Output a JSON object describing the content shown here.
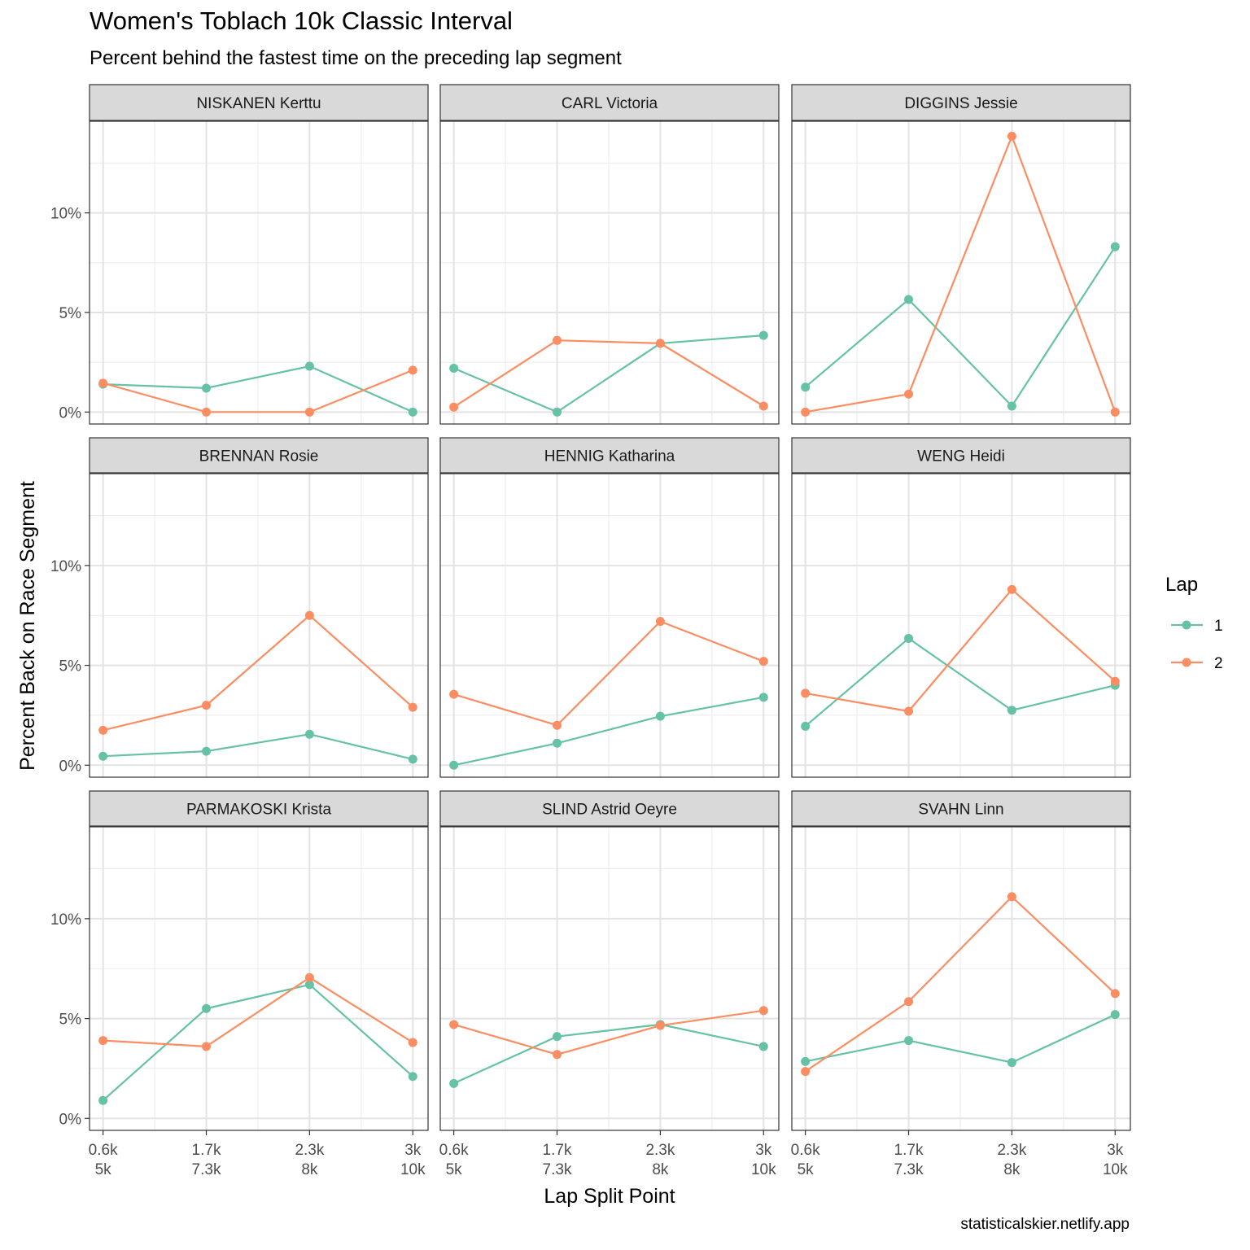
{
  "title": "Women's Toblach 10k Classic Interval",
  "subtitle": "Percent behind the fastest time on the preceding lap segment",
  "caption": "statisticalskier.netlify.app",
  "chart_data": {
    "type": "line",
    "facet_layout": "3x3 grid, shared axes",
    "xlabel": "Lap Split Point",
    "ylabel": "Percent Back on Race Segment",
    "x_ticks": [
      "0.6k\n5k",
      "1.7k\n7.3k",
      "2.3k\n8k",
      "3k\n10k"
    ],
    "y_ticks": [
      "0%",
      "5%",
      "10%"
    ],
    "y_tick_values": [
      0,
      5,
      10
    ],
    "ylim": [
      -0.6,
      14.6
    ],
    "grid": true,
    "legend": {
      "title": "Lap",
      "placement": "right",
      "entries": [
        {
          "label": "1",
          "color": "#66c2a5"
        },
        {
          "label": "2",
          "color": "#fc8d62"
        }
      ]
    },
    "colors": {
      "lap1": "#66c2a5",
      "lap2": "#fc8d62",
      "strip": "#d9d9d9",
      "grid": "#ebebeb"
    },
    "panels": [
      {
        "name": "NISKANEN Kerttu",
        "series": [
          {
            "name": "1",
            "values": [
              1.4,
              1.2,
              2.3,
              0.0
            ]
          },
          {
            "name": "2",
            "values": [
              1.45,
              0.0,
              0.0,
              2.1
            ]
          }
        ]
      },
      {
        "name": "CARL Victoria",
        "series": [
          {
            "name": "1",
            "values": [
              2.2,
              0.0,
              3.45,
              3.85
            ]
          },
          {
            "name": "2",
            "values": [
              0.25,
              3.6,
              3.45,
              0.3
            ]
          }
        ]
      },
      {
        "name": "DIGGINS Jessie",
        "series": [
          {
            "name": "1",
            "values": [
              1.25,
              5.65,
              0.3,
              8.3
            ]
          },
          {
            "name": "2",
            "values": [
              0.0,
              0.9,
              13.85,
              0.0
            ]
          }
        ]
      },
      {
        "name": "BRENNAN Rosie",
        "series": [
          {
            "name": "1",
            "values": [
              0.45,
              0.7,
              1.55,
              0.3
            ]
          },
          {
            "name": "2",
            "values": [
              1.75,
              3.0,
              7.5,
              2.9
            ]
          }
        ]
      },
      {
        "name": "HENNIG Katharina",
        "series": [
          {
            "name": "1",
            "values": [
              0.0,
              1.1,
              2.45,
              3.4
            ]
          },
          {
            "name": "2",
            "values": [
              3.55,
              2.0,
              7.2,
              5.2
            ]
          }
        ]
      },
      {
        "name": "WENG Heidi",
        "series": [
          {
            "name": "1",
            "values": [
              1.95,
              6.35,
              2.75,
              4.0
            ]
          },
          {
            "name": "2",
            "values": [
              3.6,
              2.7,
              8.8,
              4.2
            ]
          }
        ]
      },
      {
        "name": "PARMAKOSKI Krista",
        "series": [
          {
            "name": "1",
            "values": [
              0.9,
              5.5,
              6.7,
              2.1
            ]
          },
          {
            "name": "2",
            "values": [
              3.9,
              3.6,
              7.05,
              3.8
            ]
          }
        ]
      },
      {
        "name": "SLIND Astrid Oeyre",
        "series": [
          {
            "name": "1",
            "values": [
              1.75,
              4.1,
              4.7,
              3.6
            ]
          },
          {
            "name": "2",
            "values": [
              4.7,
              3.2,
              4.65,
              5.4
            ]
          }
        ]
      },
      {
        "name": "SVAHN Linn",
        "series": [
          {
            "name": "1",
            "values": [
              2.85,
              3.9,
              2.8,
              5.2
            ]
          },
          {
            "name": "2",
            "values": [
              2.35,
              5.85,
              11.1,
              6.25
            ]
          }
        ]
      }
    ]
  }
}
